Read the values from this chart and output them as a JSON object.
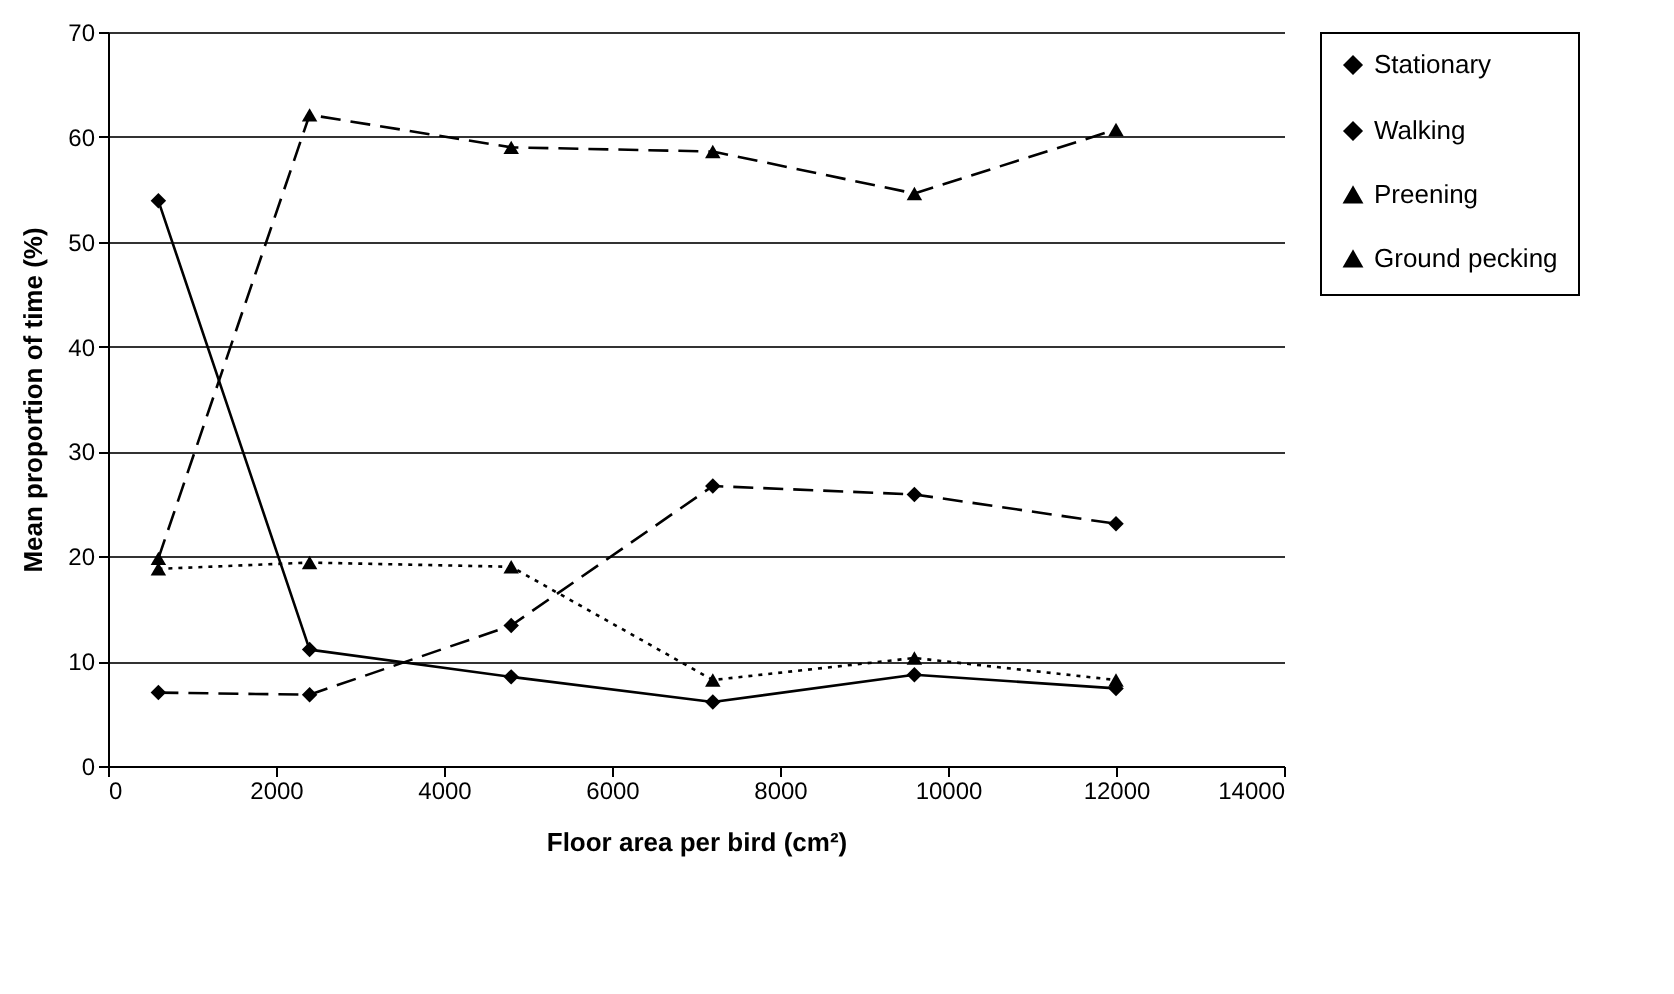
{
  "chart_data": {
    "type": "line",
    "xlabel": "Floor area per bird (cm²)",
    "ylabel": "Mean proportion of time (%)",
    "x": [
      600,
      2400,
      4800,
      7200,
      9600,
      12000
    ],
    "series": [
      {
        "name": "Stationary",
        "color": "#000000",
        "marker": "diamond",
        "line_style": "solid",
        "values": [
          53.9,
          11.1,
          8.5,
          6.1,
          8.7,
          7.4
        ]
      },
      {
        "name": "Walking",
        "color": "#000000",
        "marker": "diamond",
        "line_style": "dashed",
        "values": [
          7.0,
          6.8,
          13.4,
          26.7,
          25.9,
          23.1
        ]
      },
      {
        "name": "Preening",
        "color": "#000000",
        "marker": "triangle",
        "line_style": "dotted",
        "values": [
          18.8,
          19.4,
          19.0,
          8.2,
          10.3,
          8.2
        ]
      },
      {
        "name": "Ground pecking",
        "color": "#000000",
        "marker": "triangle",
        "line_style": "dashed",
        "values": [
          19.8,
          62.1,
          59.0,
          58.6,
          54.6,
          60.7
        ]
      }
    ],
    "xlim": [
      0,
      14000
    ],
    "xticks": [
      0,
      2000,
      4000,
      6000,
      8000,
      10000,
      12000,
      14000
    ],
    "ylim": [
      0,
      70
    ],
    "yticks": [
      0,
      10,
      20,
      30,
      40,
      50,
      60,
      70
    ],
    "grid": "y",
    "legend": "right"
  }
}
